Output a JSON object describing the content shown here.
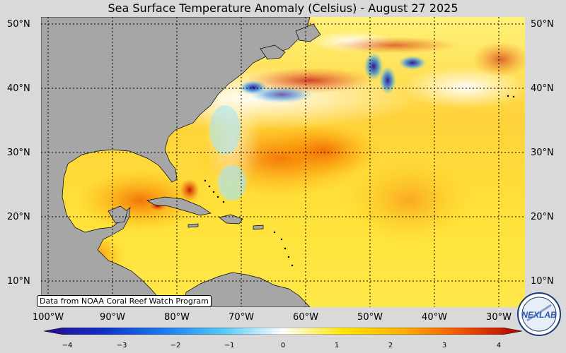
{
  "title": "Sea Surface Temperature Anomaly (Celsius) - August 27 2025",
  "source_note": "Data from NOAA Coral Reef Watch Program",
  "lat_labels": [
    "50°N",
    "40°N",
    "30°N",
    "20°N",
    "10°N"
  ],
  "lon_labels": [
    "100°W",
    "90°W",
    "80°W",
    "70°W",
    "60°W",
    "50°W",
    "40°W",
    "30°W"
  ],
  "colorbar": {
    "ticks": [
      "−4",
      "−3",
      "−2",
      "−1",
      "0",
      "1",
      "2",
      "3",
      "4"
    ],
    "min": -4,
    "max": 4,
    "colors": [
      "#2a0a8a",
      "#1030c8",
      "#1a7af0",
      "#55c8f5",
      "#ffffff",
      "#ffe600",
      "#ffb000",
      "#f05000",
      "#b00000"
    ]
  },
  "logo_text": "NEXLAB"
}
